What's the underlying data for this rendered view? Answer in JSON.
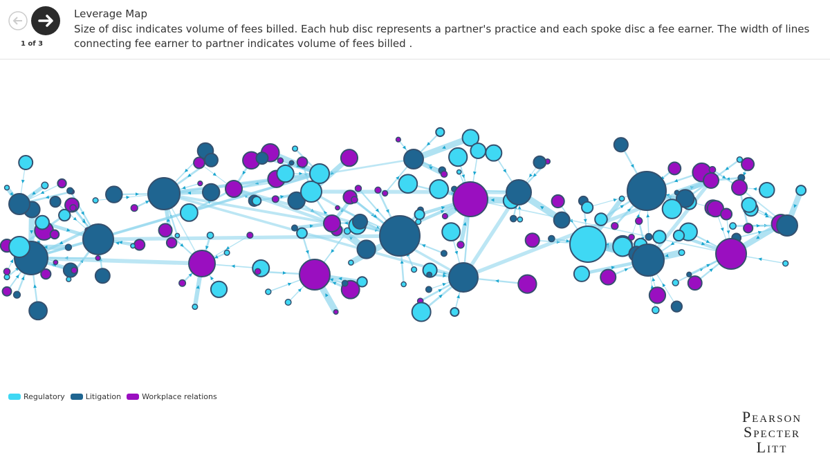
{
  "header": {
    "title": "Leverage Map",
    "description": "Size of disc indicates volume of fees billed. Each hub disc represents a partner's practice and each spoke disc a fee earner. The width of lines connecting fee earner to partner indicates volume of fees billed .",
    "pager": "1 of 3"
  },
  "legend": [
    {
      "name": "Regulatory",
      "color": "#3fd8f4"
    },
    {
      "name": "Litigation",
      "color": "#1f6591"
    },
    {
      "name": "Workplace relations",
      "color": "#9a0fc0"
    }
  ],
  "logo": [
    "Pearson",
    "Specter",
    "Litt"
  ]
}
